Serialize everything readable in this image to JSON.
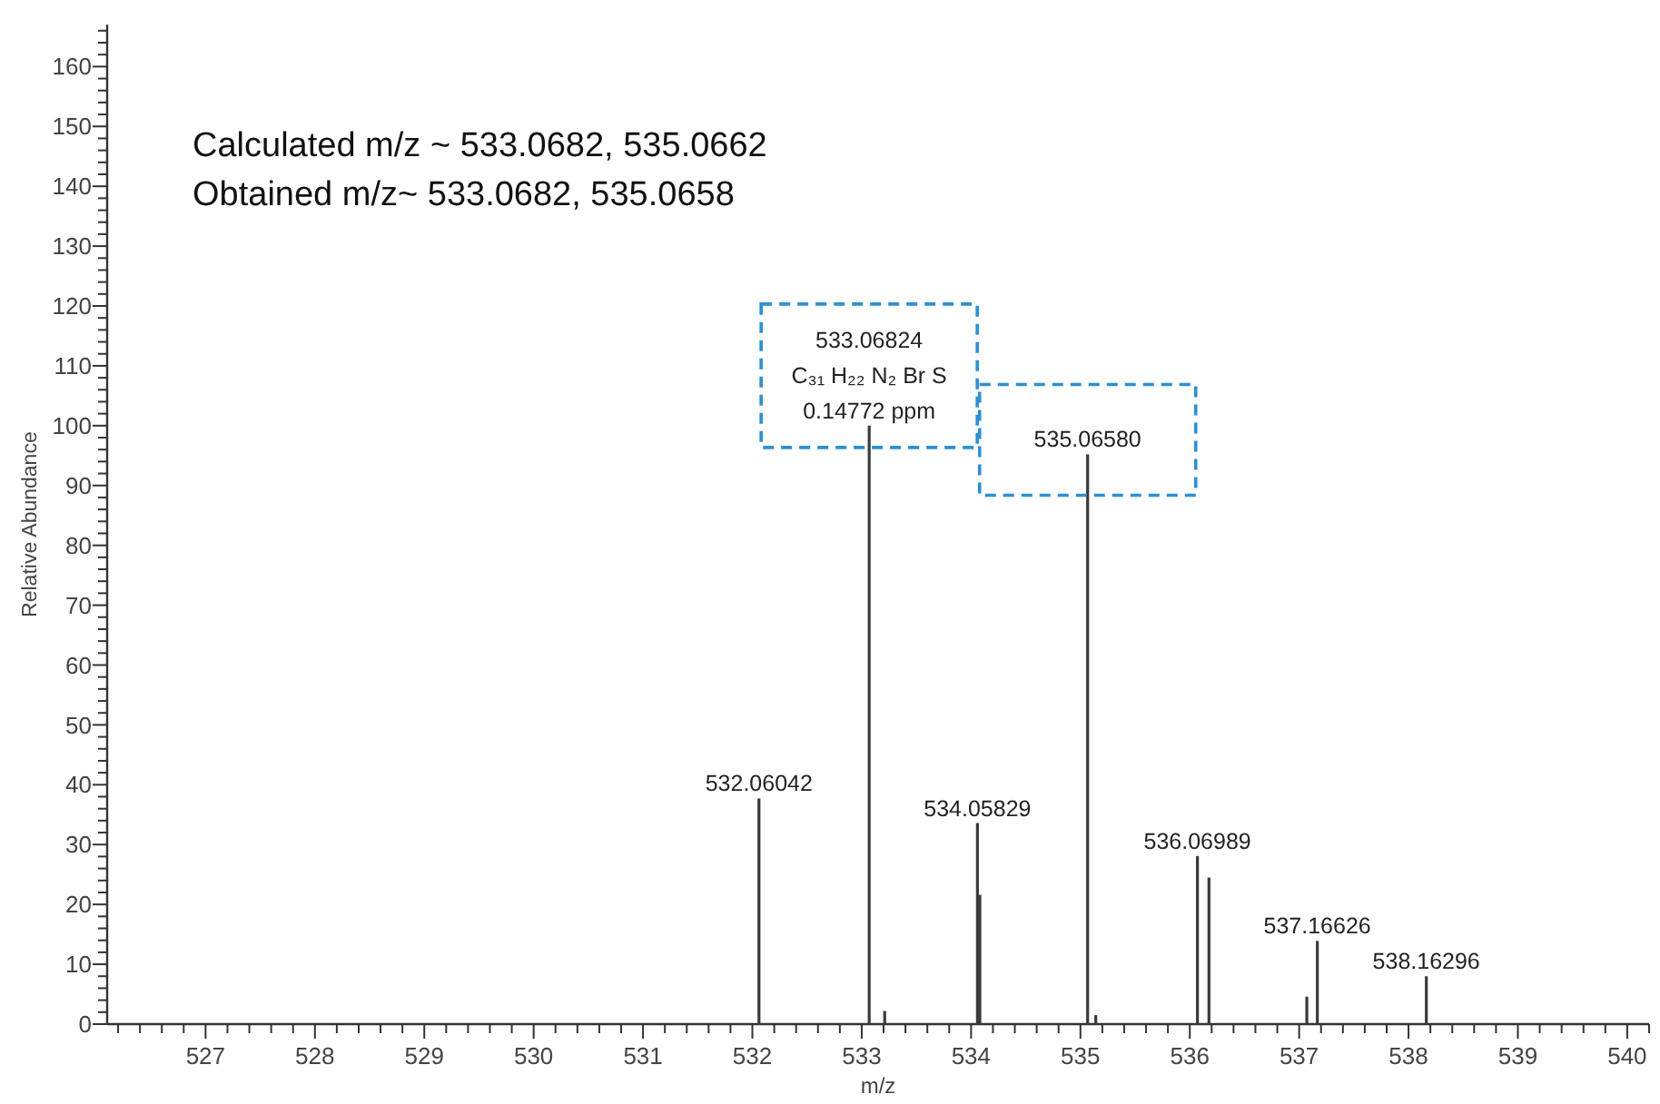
{
  "chart_data": {
    "type": "bar",
    "xlabel": "m/z",
    "ylabel": "Relative Abundance",
    "annotations": [
      "Calculated m/z ~ 533.0682, 535.0662",
      "Obtained m/z~ 533.0682, 535.0658",
      {
        "text": "533.06824\nC₃₁ H₂₂ N₂ Br S\n0.14772 ppm",
        "x": 533.06824,
        "y": 100
      },
      {
        "text": "535.06580",
        "x": 535.0658,
        "y": 95.2
      },
      {
        "text": "532.06042",
        "x": 532.06042,
        "y": 37.7
      },
      {
        "text": "534.05829",
        "x": 534.05829,
        "y": 33.6
      },
      {
        "text": "536.06989",
        "x": 536.06989,
        "y": 28.1
      },
      {
        "text": "537.16626",
        "x": 537.16626,
        "y": 13.9
      },
      {
        "text": "538.16296",
        "x": 538.16296,
        "y": 8.0
      }
    ],
    "x": [
      532.06042,
      533.06824,
      533.21,
      534.05829,
      534.08,
      535.0658,
      535.14,
      536.06989,
      536.175,
      537.07,
      537.16626,
      538.16296
    ],
    "values": [
      37.7,
      100,
      2.2,
      33.6,
      21.6,
      95.2,
      1.5,
      28.1,
      24.5,
      4.6,
      13.9,
      8.0
    ],
    "color": "#3a3a3a",
    "xlim": [
      526.1,
      540.2
    ],
    "xticks": [
      {
        "value": 526.2,
        "label": null
      },
      {
        "value": 526.4,
        "label": null
      },
      {
        "value": 526.6,
        "label": null
      },
      {
        "value": 526.8,
        "label": null
      },
      527,
      {
        "value": 527.2,
        "label": null
      },
      {
        "value": 527.4,
        "label": null
      },
      {
        "value": 527.6,
        "label": null
      },
      {
        "value": 527.8,
        "label": null
      },
      528,
      {
        "value": 528.2,
        "label": null
      },
      {
        "value": 528.4,
        "label": null
      },
      {
        "value": 528.6,
        "label": null
      },
      {
        "value": 528.8,
        "label": null
      },
      529,
      {
        "value": 529.2,
        "label": null
      },
      {
        "value": 529.4,
        "label": null
      },
      {
        "value": 529.6,
        "label": null
      },
      {
        "value": 529.8,
        "label": null
      },
      530,
      {
        "value": 530.2,
        "label": null
      },
      {
        "value": 530.4,
        "label": null
      },
      {
        "value": 530.6,
        "label": null
      },
      {
        "value": 530.8,
        "label": null
      },
      531,
      {
        "value": 531.2,
        "label": null
      },
      {
        "value": 531.4,
        "label": null
      },
      {
        "value": 531.6,
        "label": null
      },
      {
        "value": 531.8,
        "label": null
      },
      532,
      {
        "value": 532.2,
        "label": null
      },
      {
        "value": 532.4,
        "label": null
      },
      {
        "value": 532.6,
        "label": null
      },
      {
        "value": 532.8,
        "label": null
      },
      533,
      {
        "value": 533.2,
        "label": null
      },
      {
        "value": 533.4,
        "label": null
      },
      {
        "value": 533.6,
        "label": null
      },
      {
        "value": 533.8,
        "label": null
      },
      534,
      {
        "value": 534.2,
        "label": null
      },
      {
        "value": 534.4,
        "label": null
      },
      {
        "value": 534.6,
        "label": null
      },
      {
        "value": 534.8,
        "label": null
      },
      535,
      {
        "value": 535.2,
        "label": null
      },
      {
        "value": 535.4,
        "label": null
      },
      {
        "value": 535.6,
        "label": null
      },
      {
        "value": 535.8,
        "label": null
      },
      536,
      {
        "value": 536.2,
        "label": null
      },
      {
        "value": 536.4,
        "label": null
      },
      {
        "value": 536.6,
        "label": null
      },
      {
        "value": 536.8,
        "label": null
      },
      537,
      {
        "value": 537.2,
        "label": null
      },
      {
        "value": 537.4,
        "label": null
      },
      {
        "value": 537.6,
        "label": null
      },
      {
        "value": 537.8,
        "label": null
      },
      538,
      {
        "value": 538.2,
        "label": null
      },
      {
        "value": 538.4,
        "label": null
      },
      {
        "value": 538.6,
        "label": null
      },
      {
        "value": 538.8,
        "label": null
      },
      539,
      {
        "value": 539.2,
        "label": null
      },
      {
        "value": 539.4,
        "label": null
      },
      {
        "value": 539.6,
        "label": null
      },
      {
        "value": 539.8,
        "label": null
      },
      540,
      {
        "value": 540.2,
        "label": null
      }
    ],
    "ylim": [
      0,
      167
    ],
    "yticks": [
      0,
      {
        "value": 2,
        "label": null
      },
      {
        "value": 4,
        "label": null
      },
      {
        "value": 6,
        "label": null
      },
      {
        "value": 8,
        "label": null
      },
      10,
      {
        "value": 12,
        "label": null
      },
      {
        "value": 14,
        "label": null
      },
      {
        "value": 16,
        "label": null
      },
      {
        "value": 18,
        "label": null
      },
      20,
      {
        "value": 22,
        "label": null
      },
      {
        "value": 24,
        "label": null
      },
      {
        "value": 26,
        "label": null
      },
      {
        "value": 28,
        "label": null
      },
      30,
      {
        "value": 32,
        "label": null
      },
      {
        "value": 34,
        "label": null
      },
      {
        "value": 36,
        "label": null
      },
      {
        "value": 38,
        "label": null
      },
      40,
      {
        "value": 42,
        "label": null
      },
      {
        "value": 44,
        "label": null
      },
      {
        "value": 46,
        "label": null
      },
      {
        "value": 48,
        "label": null
      },
      50,
      {
        "value": 52,
        "label": null
      },
      {
        "value": 54,
        "label": null
      },
      {
        "value": 56,
        "label": null
      },
      {
        "value": 58,
        "label": null
      },
      60,
      {
        "value": 62,
        "label": null
      },
      {
        "value": 64,
        "label": null
      },
      {
        "value": 66,
        "label": null
      },
      {
        "value": 68,
        "label": null
      },
      70,
      {
        "value": 72,
        "label": null
      },
      {
        "value": 74,
        "label": null
      },
      {
        "value": 76,
        "label": null
      },
      {
        "value": 78,
        "label": null
      },
      80,
      {
        "value": 82,
        "label": null
      },
      {
        "value": 84,
        "label": null
      },
      {
        "value": 86,
        "label": null
      },
      {
        "value": 88,
        "label": null
      },
      90,
      {
        "value": 92,
        "label": null
      },
      {
        "value": 94,
        "label": null
      },
      {
        "value": 96,
        "label": null
      },
      {
        "value": 98,
        "label": null
      },
      100,
      {
        "value": 102,
        "label": null
      },
      {
        "value": 104,
        "label": null
      },
      {
        "value": 106,
        "label": null
      },
      {
        "value": 108,
        "label": null
      },
      110,
      {
        "value": 112,
        "label": null
      },
      {
        "value": 114,
        "label": null
      },
      {
        "value": 116,
        "label": null
      },
      {
        "value": 118,
        "label": null
      },
      120,
      {
        "value": 122,
        "label": null
      },
      {
        "value": 124,
        "label": null
      },
      {
        "value": 126,
        "label": null
      },
      {
        "value": 128,
        "label": null
      },
      130,
      {
        "value": 132,
        "label": null
      },
      {
        "value": 134,
        "label": null
      },
      {
        "value": 136,
        "label": null
      },
      {
        "value": 138,
        "label": null
      },
      140,
      {
        "value": 142,
        "label": null
      },
      {
        "value": 144,
        "label": null
      },
      {
        "value": 146,
        "label": null
      },
      {
        "value": 148,
        "label": null
      },
      150,
      {
        "value": 152,
        "label": null
      },
      {
        "value": 154,
        "label": null
      },
      {
        "value": 156,
        "label": null
      },
      {
        "value": 158,
        "label": null
      },
      160,
      {
        "value": 162,
        "label": null
      },
      {
        "value": 164,
        "label": null
      },
      {
        "value": 166,
        "label": null
      }
    ]
  }
}
